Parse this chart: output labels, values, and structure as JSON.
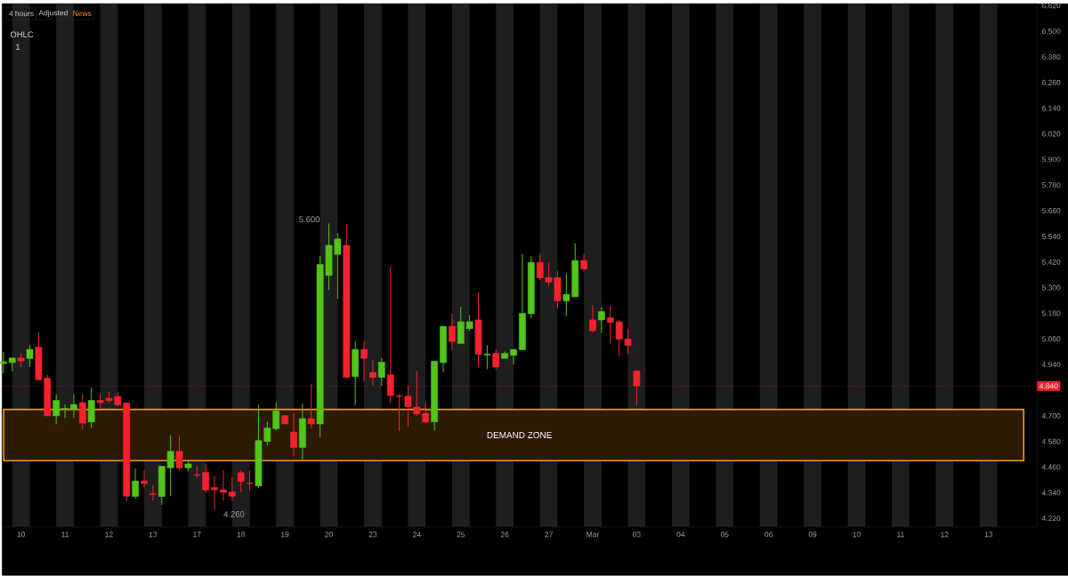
{
  "chart_data": {
    "type": "candlestick",
    "categories": [
      null,
      null,
      "10",
      null,
      null,
      null,
      null,
      "11",
      null,
      null,
      null,
      null,
      "12",
      null,
      null,
      null,
      null,
      "13",
      null,
      null,
      null,
      null,
      "17",
      null,
      null,
      null,
      null,
      "18",
      null,
      null,
      null,
      null,
      "19",
      null,
      null,
      null,
      null,
      "20",
      null,
      null,
      null,
      null,
      "23",
      null,
      null,
      null,
      null,
      "24",
      null,
      null,
      null,
      null,
      "25",
      null,
      null,
      null,
      null,
      "26",
      null,
      null,
      null,
      null,
      "27",
      null,
      null,
      null,
      null,
      "Mar",
      null,
      null,
      null,
      null,
      "03",
      null,
      null,
      null,
      null,
      "04",
      null,
      null,
      null,
      null,
      "05",
      null,
      null,
      null,
      null,
      "06",
      null,
      null,
      null,
      null,
      "09",
      null,
      null,
      null,
      null,
      "10",
      null,
      null,
      null,
      null,
      "11",
      null,
      null,
      null,
      null,
      "12",
      null,
      null,
      null,
      null,
      "13",
      null,
      null,
      null,
      null,
      null
    ],
    "ohlc": [
      [
        4.945,
        5.0,
        4.898,
        4.953
      ],
      [
        4.949,
        4.971,
        4.909,
        4.971
      ],
      [
        4.971,
        4.992,
        4.928,
        4.957
      ],
      [
        4.968,
        5.032,
        4.928,
        5.011
      ],
      [
        5.021,
        5.092,
        4.861,
        4.87
      ],
      [
        4.876,
        4.891,
        4.7,
        4.7
      ],
      [
        4.7,
        4.801,
        4.661,
        4.772
      ],
      [
        4.731,
        4.753,
        4.69,
        4.734
      ],
      [
        4.731,
        4.801,
        4.69,
        4.753
      ],
      [
        4.762,
        4.801,
        4.636,
        4.666
      ],
      [
        4.671,
        4.833,
        4.642,
        4.772
      ],
      [
        4.772,
        4.801,
        4.732,
        4.761
      ],
      [
        4.782,
        4.811,
        4.76,
        4.771
      ],
      [
        4.791,
        4.811,
        4.742,
        4.751
      ],
      [
        4.76,
        4.762,
        4.299,
        4.324
      ],
      [
        4.323,
        4.454,
        4.313,
        4.395
      ],
      [
        4.395,
        4.444,
        4.364,
        4.383
      ],
      [
        4.335,
        4.374,
        4.303,
        4.332
      ],
      [
        4.323,
        4.464,
        4.284,
        4.464
      ],
      [
        4.457,
        4.609,
        4.325,
        4.534
      ],
      [
        4.534,
        4.603,
        4.442,
        4.457
      ],
      [
        4.457,
        4.494,
        4.442,
        4.475
      ],
      [
        4.425,
        4.465,
        4.411,
        4.422
      ],
      [
        4.435,
        4.475,
        4.342,
        4.353
      ],
      [
        4.364,
        4.419,
        4.26,
        4.354
      ],
      [
        4.354,
        4.445,
        4.303,
        4.342
      ],
      [
        4.344,
        4.413,
        4.303,
        4.324
      ],
      [
        4.434,
        4.445,
        4.344,
        4.393
      ],
      [
        4.386,
        4.445,
        4.351,
        4.383
      ],
      [
        4.372,
        4.752,
        4.362,
        4.584
      ],
      [
        4.58,
        4.672,
        4.561,
        4.643
      ],
      [
        4.64,
        4.763,
        4.631,
        4.723
      ],
      [
        4.701,
        4.701,
        4.662,
        4.662
      ],
      [
        4.624,
        4.714,
        4.51,
        4.552
      ],
      [
        4.552,
        4.758,
        4.496,
        4.687
      ],
      [
        4.687,
        4.849,
        4.642,
        4.662
      ],
      [
        4.662,
        5.448,
        4.6,
        5.409
      ],
      [
        5.357,
        5.6,
        5.288,
        5.498
      ],
      [
        5.456,
        5.556,
        5.247,
        5.528
      ],
      [
        5.498,
        5.597,
        4.88,
        4.88
      ],
      [
        4.884,
        5.05,
        4.751,
        5.011
      ],
      [
        5.011,
        5.05,
        4.86,
        4.969
      ],
      [
        4.903,
        4.96,
        4.841,
        4.88
      ],
      [
        4.88,
        4.971,
        4.841,
        4.951
      ],
      [
        4.892,
        5.4,
        4.761,
        4.795
      ],
      [
        4.794,
        4.801,
        4.628,
        4.791
      ],
      [
        4.792,
        4.842,
        4.649,
        4.743
      ],
      [
        4.741,
        4.911,
        4.7,
        4.709
      ],
      [
        4.712,
        4.763,
        4.665,
        4.671
      ],
      [
        4.672,
        4.958,
        4.631,
        4.956
      ],
      [
        4.949,
        5.119,
        4.904,
        5.119
      ],
      [
        5.119,
        5.178,
        5.008,
        5.048
      ],
      [
        5.039,
        5.21,
        5.039,
        5.14
      ],
      [
        5.108,
        5.171,
        5.097,
        5.14
      ],
      [
        5.149,
        5.278,
        4.929,
        4.989
      ],
      [
        4.985,
        5.03,
        4.918,
        4.989
      ],
      [
        4.992,
        5.011,
        4.918,
        4.928
      ],
      [
        4.969,
        5.001,
        4.969,
        4.992
      ],
      [
        4.983,
        5.011,
        4.939,
        5.011
      ],
      [
        5.009,
        5.458,
        5.009,
        5.18
      ],
      [
        5.178,
        5.448,
        5.157,
        5.418
      ],
      [
        5.418,
        5.458,
        5.336,
        5.346
      ],
      [
        5.347,
        5.418,
        5.307,
        5.326
      ],
      [
        5.347,
        5.377,
        5.207,
        5.238
      ],
      [
        5.238,
        5.368,
        5.167,
        5.268
      ],
      [
        5.257,
        5.507,
        5.257,
        5.427
      ],
      [
        5.427,
        5.458,
        5.376,
        5.387
      ],
      [
        5.149,
        5.218,
        5.088,
        5.098
      ],
      [
        5.149,
        5.209,
        5.088,
        5.188
      ],
      [
        5.159,
        5.218,
        5.039,
        5.138
      ],
      [
        5.14,
        5.149,
        4.978,
        5.059
      ],
      [
        5.059,
        5.108,
        4.989,
        5.029
      ],
      [
        4.91,
        4.91,
        4.749,
        4.84
      ],
      null,
      null,
      null,
      null,
      null,
      null,
      null,
      null,
      null,
      null,
      null,
      null,
      null,
      null,
      null,
      null,
      null,
      null,
      null,
      null,
      null,
      null,
      null,
      null,
      null,
      null,
      null,
      null,
      null,
      null,
      null,
      null,
      null,
      null,
      null,
      null,
      null,
      null,
      null,
      null,
      null,
      null,
      null,
      null,
      null
    ],
    "ylim": [
      4.18,
      6.63
    ],
    "yticks": [
      {
        "value": 4.22,
        "label": "4.220"
      },
      {
        "value": 4.34,
        "label": "4.340"
      },
      {
        "value": 4.46,
        "label": "4.460"
      },
      {
        "value": 4.58,
        "label": "4.580"
      },
      {
        "value": 4.7,
        "label": "4.700"
      },
      {
        "value": 4.94,
        "label": "4.940"
      },
      {
        "value": 5.06,
        "label": "5.060"
      },
      {
        "value": 5.18,
        "label": "5.180"
      },
      {
        "value": 5.3,
        "label": "5.300"
      },
      {
        "value": 5.42,
        "label": "5.420"
      },
      {
        "value": 5.54,
        "label": "5.540"
      },
      {
        "value": 5.66,
        "label": "5.660"
      },
      {
        "value": 5.78,
        "label": "5.780"
      },
      {
        "value": 5.9,
        "label": "5.900"
      },
      {
        "value": 6.02,
        "label": "6.020"
      },
      {
        "value": 6.14,
        "label": "6.140"
      },
      {
        "value": 6.26,
        "label": "6.260"
      },
      {
        "value": 6.38,
        "label": "6.380"
      },
      {
        "value": 6.5,
        "label": "6.500"
      },
      {
        "value": 6.62,
        "label": "6.620"
      }
    ],
    "ref_lines": [
      {
        "axis": "y",
        "value": 4.84,
        "label": "4.840",
        "color": "#f5222d",
        "line_style": "dotted"
      }
    ],
    "bands": [
      {
        "axis": "y",
        "from": 4.49,
        "to": 4.73,
        "label": "DEMAND ZONE",
        "color": "#f7931e"
      }
    ],
    "annotations": [
      "4 hours",
      "Adjusted",
      "News",
      "OHLC",
      "1",
      "5.600",
      "4.260"
    ]
  }
}
